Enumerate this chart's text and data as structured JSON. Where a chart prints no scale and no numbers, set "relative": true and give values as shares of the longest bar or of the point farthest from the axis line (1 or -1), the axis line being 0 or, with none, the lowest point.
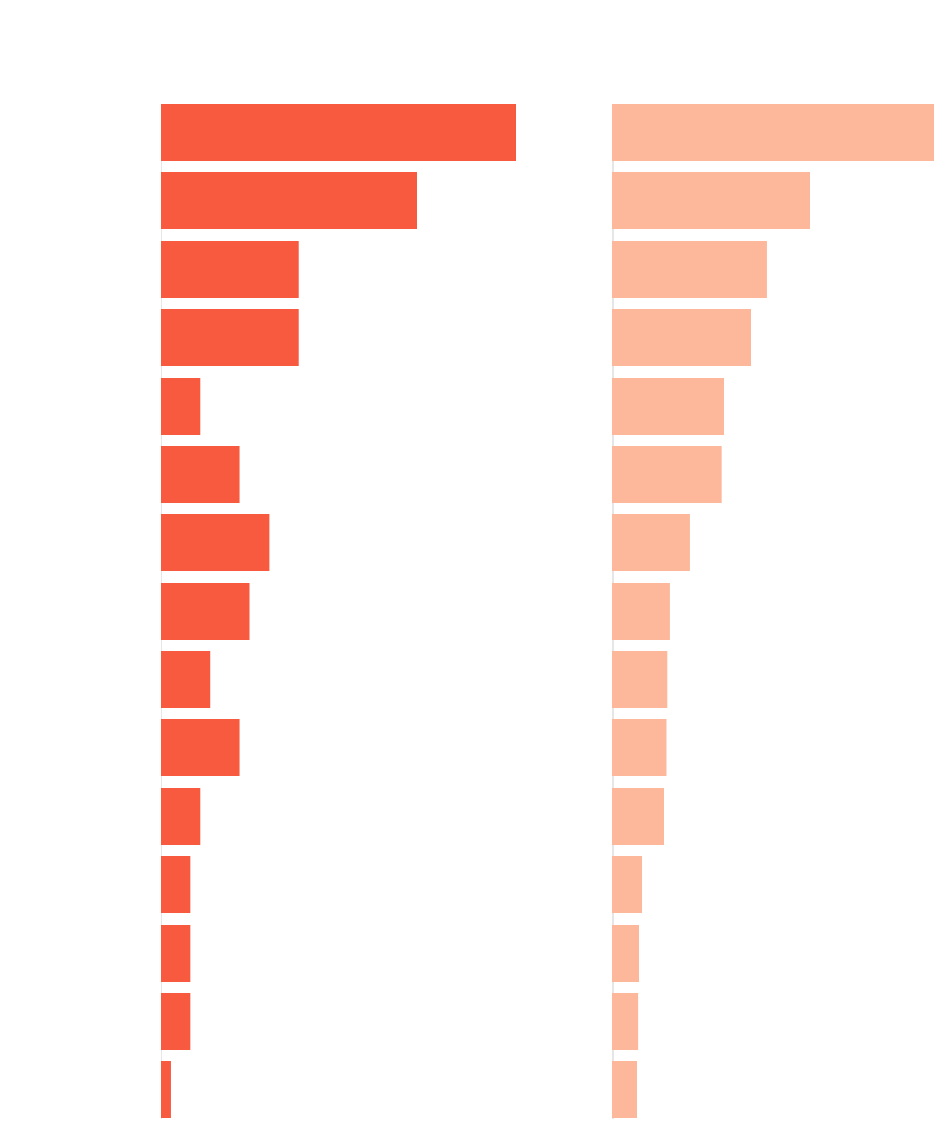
{
  "chart_data": [
    {
      "type": "bar",
      "orientation": "horizontal",
      "relative": true,
      "categories": [
        null,
        null,
        null,
        null,
        null,
        null,
        null,
        null,
        null,
        null,
        null,
        null,
        null,
        null,
        null
      ],
      "values": [
        1,
        0.722,
        0.389,
        0.389,
        0.111,
        0.222,
        0.306,
        0.25,
        0.139,
        0.222,
        0.111,
        0.083,
        0.083,
        0.083,
        0.028
      ],
      "color": "#f75a3f"
    },
    {
      "type": "bar",
      "orientation": "horizontal",
      "relative": true,
      "categories": [
        null,
        null,
        null,
        null,
        null,
        null,
        null,
        null,
        null,
        null,
        null,
        null,
        null,
        null,
        null
      ],
      "values": [
        1,
        0.614,
        0.48,
        0.43,
        0.346,
        0.34,
        0.241,
        0.179,
        0.171,
        0.167,
        0.161,
        0.093,
        0.083,
        0.08,
        0.077
      ],
      "color": "#fdb89c"
    }
  ]
}
